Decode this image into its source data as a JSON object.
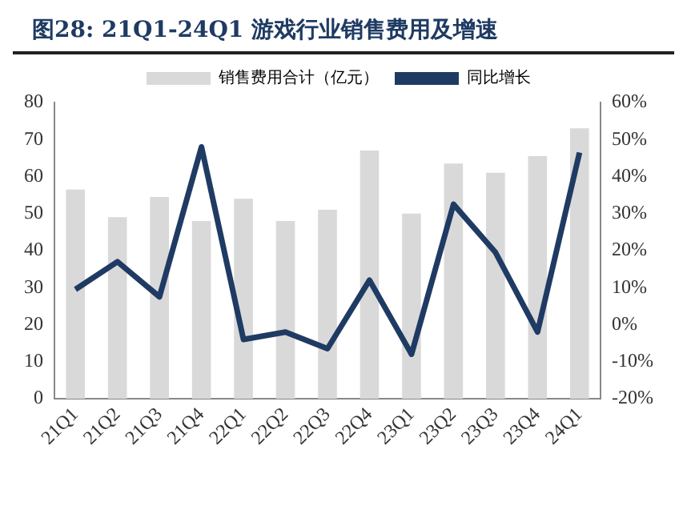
{
  "chart_data": {
    "type": "bar",
    "title": "图28:  21Q1-24Q1 游戏行业销售费用及增速",
    "categories": [
      "21Q1",
      "21Q2",
      "21Q3",
      "21Q4",
      "22Q1",
      "22Q2",
      "22Q3",
      "22Q4",
      "23Q1",
      "23Q2",
      "23Q3",
      "23Q4",
      "24Q1"
    ],
    "series": [
      {
        "name": "销售费用合计（亿元）",
        "color": "#d9d9d9",
        "values": [
          56.5,
          49,
          54.5,
          48,
          54,
          48,
          51,
          67,
          50,
          63.5,
          61,
          65.5,
          73
        ]
      },
      {
        "name": "同比增长",
        "type": "line",
        "axis": "y2",
        "color": "#1f3b63",
        "values": [
          9.5,
          17,
          7.5,
          48,
          -4,
          -2,
          -6.5,
          12,
          -8,
          32.5,
          19.5,
          -2,
          46.5
        ]
      }
    ],
    "ylim": [
      0,
      80
    ],
    "yticks": [
      0,
      10,
      20,
      30,
      40,
      50,
      60,
      70,
      80
    ],
    "y2lim": [
      -20,
      60
    ],
    "y2ticks": [
      {
        "value": -20,
        "label": "-20%"
      },
      {
        "value": -10,
        "label": "-10%"
      },
      {
        "value": 0,
        "label": "0%"
      },
      {
        "value": 10,
        "label": "10%"
      },
      {
        "value": 20,
        "label": "20%"
      },
      {
        "value": 30,
        "label": "30%"
      },
      {
        "value": 40,
        "label": "40%"
      },
      {
        "value": 50,
        "label": "50%"
      },
      {
        "value": 60,
        "label": "60%"
      }
    ],
    "grid": false,
    "legend": "top",
    "marker": "none",
    "line_style": "solid"
  }
}
